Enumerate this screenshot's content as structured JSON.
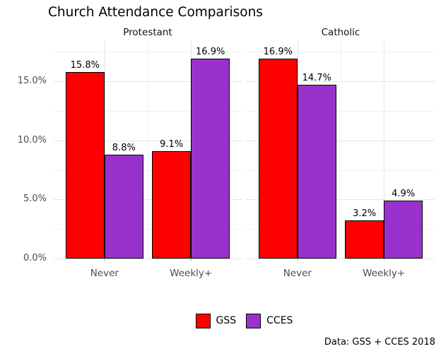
{
  "chart_data": {
    "type": "bar",
    "title": "Church Attendance Comparisons",
    "caption": "Data: GSS + CCES 2018",
    "xlabel": "",
    "ylabel": "",
    "categories": [
      "Never",
      "Weekly+"
    ],
    "facets": [
      {
        "label": "Protestant",
        "series": [
          {
            "name": "GSS",
            "color": "#ff0000",
            "values": [
              15.8,
              9.1
            ]
          },
          {
            "name": "CCES",
            "color": "#9932cc",
            "values": [
              8.8,
              16.9
            ]
          }
        ]
      },
      {
        "label": "Catholic",
        "series": [
          {
            "name": "GSS",
            "color": "#ff0000",
            "values": [
              16.9,
              3.2
            ]
          },
          {
            "name": "CCES",
            "color": "#9932cc",
            "values": [
              14.7,
              4.9
            ]
          }
        ]
      }
    ],
    "bar_value_labels": {
      "Protestant": {
        "Never": {
          "GSS": "15.8%",
          "CCES": "8.8%"
        },
        "Weekly+": {
          "GSS": "9.1%",
          "CCES": "16.9%"
        }
      },
      "Catholic": {
        "Never": {
          "GSS": "16.9%",
          "CCES": "14.7%"
        },
        "Weekly+": {
          "GSS": "3.2%",
          "CCES": "4.9%"
        }
      }
    },
    "y_axis": {
      "ticks": [
        {
          "label": "0.0%",
          "value": 0
        },
        {
          "label": "5.0%",
          "value": 5
        },
        {
          "label": "10.0%",
          "value": 10
        },
        {
          "label": "15.0%",
          "value": 15
        }
      ],
      "minor_ticks": [
        2.5,
        7.5,
        12.5,
        17.5
      ],
      "range": [
        0,
        18.4
      ],
      "grid": true
    },
    "legend": {
      "position": "bottom",
      "entries": [
        {
          "label": "GSS",
          "color": "#ff0000"
        },
        {
          "label": "CCES",
          "color": "#9932cc"
        }
      ]
    },
    "colors": {
      "bar_outline": "#000000",
      "grid_major": "#e4e4e4",
      "grid_minor": "#f1f1f1",
      "axis_text": "#4d4d4d",
      "text": "#000000",
      "background": "#ffffff"
    }
  }
}
